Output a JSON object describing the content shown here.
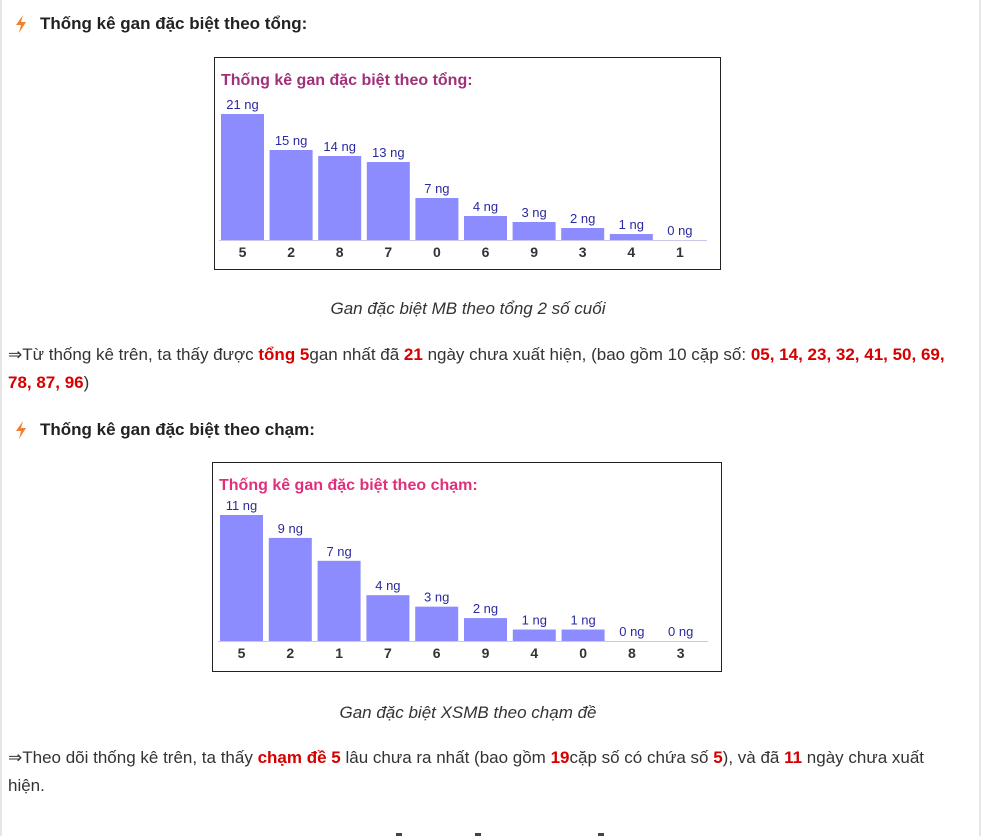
{
  "section1": {
    "heading": "Thống kê gan đặc biệt theo tổng:",
    "caption": "Gan đặc biệt MB theo tổng 2 số cuối",
    "paragraph": {
      "t1": "⇒Từ thống kê trên, ta thấy được ",
      "h1": "tổng 5",
      "t2": "gan nhất đã ",
      "h2": "21",
      "t3": " ngày chưa xuất hiện, (bao gồm 10 cặp số: ",
      "h3": "05, 14, 23, 32, 41, 50, 69, 78, 87, 96",
      "t4": ")"
    }
  },
  "section2": {
    "heading": "Thống kê gan đặc biệt theo chạm:",
    "caption": "Gan đặc biệt XSMB theo chạm đề",
    "paragraph": {
      "t1": "⇒Theo dõi thống kê trên, ta thấy ",
      "h1": "chạm đề 5",
      "t2": " lâu chưa ra nhất (bao gồm ",
      "h2": "19",
      "t3": "cặp số có chứa số ",
      "h3": "5",
      "t4": "), và đã ",
      "h4": "11",
      "t5": " ngày chưa xuất hiện."
    }
  },
  "colors": {
    "bar": "#8c8cff",
    "value_label": "#2a2aa0",
    "title_chart1": "#a0307a",
    "title_chart2": "#e0307a",
    "highlight": "#d60000",
    "bolt": "#f08030"
  },
  "icons": {
    "heading": "bolt-icon"
  },
  "chart_data": [
    {
      "type": "bar",
      "title": "Thống kê gan đặc biệt theo tổng:",
      "categories": [
        "5",
        "2",
        "8",
        "7",
        "0",
        "6",
        "9",
        "3",
        "4",
        "1"
      ],
      "values": [
        21,
        15,
        14,
        13,
        7,
        4,
        3,
        2,
        1,
        0
      ],
      "value_labels": [
        "21 ng",
        "15 ng",
        "14 ng",
        "13 ng",
        "7 ng",
        "4 ng",
        "3 ng",
        "2 ng",
        "1 ng",
        "0 ng"
      ],
      "ylim": [
        0,
        21
      ],
      "grid": false,
      "legend": "none"
    },
    {
      "type": "bar",
      "title": "Thống kê gan đặc biệt theo chạm:",
      "categories": [
        "5",
        "2",
        "1",
        "7",
        "6",
        "9",
        "4",
        "0",
        "8",
        "3"
      ],
      "values": [
        11,
        9,
        7,
        4,
        3,
        2,
        1,
        1,
        0,
        0
      ],
      "value_labels": [
        "11 ng",
        "9 ng",
        "7 ng",
        "4 ng",
        "3 ng",
        "2 ng",
        "1 ng",
        "1 ng",
        "0 ng",
        "0 ng"
      ],
      "ylim": [
        0,
        11
      ],
      "grid": false,
      "legend": "none"
    }
  ]
}
